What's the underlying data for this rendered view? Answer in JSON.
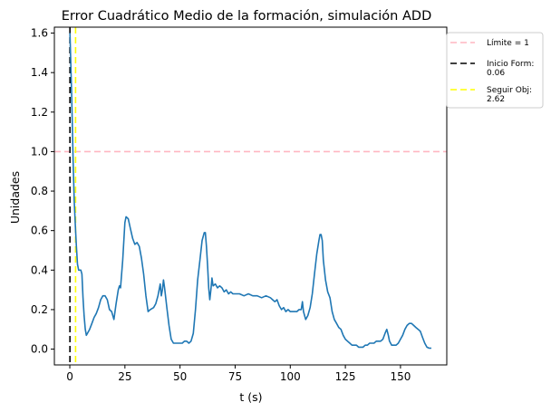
{
  "chart_data": {
    "type": "line",
    "title": "Error Cuadrático Medio de la formación, simulación ADD",
    "xlabel": "t (s)",
    "ylabel": "Unidades",
    "xlim": [
      -7,
      171
    ],
    "ylim": [
      -0.08,
      1.63
    ],
    "x_ticks": [
      0,
      25,
      50,
      75,
      100,
      125,
      150
    ],
    "y_ticks": [
      0.0,
      0.2,
      0.4,
      0.6,
      0.8,
      1.0,
      1.2,
      1.4,
      1.6
    ],
    "x_tick_labels": [
      "0",
      "25",
      "50",
      "75",
      "100",
      "125",
      "150"
    ],
    "y_tick_labels": [
      "0.0",
      "0.2",
      "0.4",
      "0.6",
      "0.8",
      "1.0",
      "1.2",
      "1.4",
      "1.6"
    ],
    "grid": false,
    "legend_position": "outside-top-right",
    "series": [
      {
        "color": "#1f77b4",
        "points": [
          [
            0.06,
            1.6
          ],
          [
            0.8,
            1.3
          ],
          [
            1.5,
            0.95
          ],
          [
            2.0,
            0.75
          ],
          [
            2.6,
            0.6
          ],
          [
            3.0,
            0.52
          ],
          [
            3.5,
            0.43
          ],
          [
            4.0,
            0.4
          ],
          [
            5.0,
            0.4
          ],
          [
            5.5,
            0.38
          ],
          [
            6.0,
            0.26
          ],
          [
            6.5,
            0.17
          ],
          [
            7.0,
            0.1
          ],
          [
            7.5,
            0.07
          ],
          [
            8.0,
            0.08
          ],
          [
            9.0,
            0.1
          ],
          [
            10.0,
            0.13
          ],
          [
            11.0,
            0.16
          ],
          [
            12.0,
            0.18
          ],
          [
            13.0,
            0.21
          ],
          [
            14.0,
            0.25
          ],
          [
            15.0,
            0.27
          ],
          [
            16.0,
            0.27
          ],
          [
            17.0,
            0.25
          ],
          [
            18.0,
            0.2
          ],
          [
            19.0,
            0.19
          ],
          [
            20.0,
            0.15
          ],
          [
            21.0,
            0.23
          ],
          [
            22.0,
            0.3
          ],
          [
            22.5,
            0.32
          ],
          [
            23.0,
            0.31
          ],
          [
            24.0,
            0.45
          ],
          [
            25.0,
            0.64
          ],
          [
            25.5,
            0.67
          ],
          [
            26.5,
            0.66
          ],
          [
            27.5,
            0.61
          ],
          [
            28.5,
            0.56
          ],
          [
            29.5,
            0.53
          ],
          [
            30.5,
            0.54
          ],
          [
            31.5,
            0.52
          ],
          [
            32.5,
            0.46
          ],
          [
            33.5,
            0.38
          ],
          [
            34.5,
            0.27
          ],
          [
            35.5,
            0.19
          ],
          [
            36.5,
            0.2
          ],
          [
            38.0,
            0.21
          ],
          [
            39.0,
            0.23
          ],
          [
            40.0,
            0.27
          ],
          [
            41.0,
            0.33
          ],
          [
            41.5,
            0.27
          ],
          [
            42.0,
            0.3
          ],
          [
            42.5,
            0.35
          ],
          [
            43.0,
            0.31
          ],
          [
            44.0,
            0.21
          ],
          [
            45.0,
            0.12
          ],
          [
            46.0,
            0.05
          ],
          [
            47.0,
            0.03
          ],
          [
            48.0,
            0.03
          ],
          [
            49.0,
            0.03
          ],
          [
            50.0,
            0.03
          ],
          [
            51.0,
            0.03
          ],
          [
            52.0,
            0.04
          ],
          [
            53.0,
            0.04
          ],
          [
            54.0,
            0.03
          ],
          [
            55.0,
            0.04
          ],
          [
            56.0,
            0.08
          ],
          [
            57.0,
            0.2
          ],
          [
            58.0,
            0.35
          ],
          [
            59.0,
            0.45
          ],
          [
            60.0,
            0.55
          ],
          [
            61.0,
            0.59
          ],
          [
            61.5,
            0.59
          ],
          [
            62.0,
            0.52
          ],
          [
            62.5,
            0.42
          ],
          [
            63.0,
            0.31
          ],
          [
            63.5,
            0.25
          ],
          [
            64.0,
            0.3
          ],
          [
            64.5,
            0.36
          ],
          [
            65.0,
            0.32
          ],
          [
            66.0,
            0.33
          ],
          [
            67.0,
            0.31
          ],
          [
            68.0,
            0.32
          ],
          [
            69.0,
            0.31
          ],
          [
            70.0,
            0.29
          ],
          [
            71.0,
            0.3
          ],
          [
            72.0,
            0.28
          ],
          [
            73.0,
            0.29
          ],
          [
            74.0,
            0.28
          ],
          [
            75.0,
            0.28
          ],
          [
            77.0,
            0.28
          ],
          [
            79.0,
            0.27
          ],
          [
            81.0,
            0.28
          ],
          [
            83.0,
            0.27
          ],
          [
            85.0,
            0.27
          ],
          [
            87.0,
            0.26
          ],
          [
            89.0,
            0.27
          ],
          [
            91.0,
            0.26
          ],
          [
            92.0,
            0.25
          ],
          [
            93.0,
            0.24
          ],
          [
            94.0,
            0.25
          ],
          [
            95.0,
            0.22
          ],
          [
            96.0,
            0.2
          ],
          [
            97.0,
            0.21
          ],
          [
            98.0,
            0.19
          ],
          [
            99.0,
            0.2
          ],
          [
            100.0,
            0.19
          ],
          [
            101.0,
            0.19
          ],
          [
            102.0,
            0.19
          ],
          [
            103.0,
            0.19
          ],
          [
            104.0,
            0.2
          ],
          [
            105.0,
            0.2
          ],
          [
            105.5,
            0.24
          ],
          [
            106.0,
            0.19
          ],
          [
            107.0,
            0.15
          ],
          [
            108.0,
            0.17
          ],
          [
            109.0,
            0.21
          ],
          [
            110.0,
            0.28
          ],
          [
            111.0,
            0.38
          ],
          [
            112.0,
            0.48
          ],
          [
            113.0,
            0.55
          ],
          [
            113.5,
            0.58
          ],
          [
            114.0,
            0.58
          ],
          [
            114.5,
            0.55
          ],
          [
            115.0,
            0.45
          ],
          [
            116.0,
            0.35
          ],
          [
            117.0,
            0.29
          ],
          [
            118.0,
            0.26
          ],
          [
            119.0,
            0.19
          ],
          [
            120.0,
            0.15
          ],
          [
            121.0,
            0.13
          ],
          [
            122.0,
            0.11
          ],
          [
            123.0,
            0.1
          ],
          [
            124.0,
            0.07
          ],
          [
            125.0,
            0.05
          ],
          [
            126.0,
            0.04
          ],
          [
            127.0,
            0.03
          ],
          [
            128.0,
            0.02
          ],
          [
            129.0,
            0.02
          ],
          [
            130.0,
            0.02
          ],
          [
            131.0,
            0.01
          ],
          [
            132.0,
            0.01
          ],
          [
            133.0,
            0.01
          ],
          [
            134.0,
            0.02
          ],
          [
            135.0,
            0.02
          ],
          [
            136.0,
            0.03
          ],
          [
            137.0,
            0.03
          ],
          [
            138.0,
            0.03
          ],
          [
            139.0,
            0.04
          ],
          [
            140.0,
            0.04
          ],
          [
            141.0,
            0.04
          ],
          [
            142.0,
            0.05
          ],
          [
            143.0,
            0.08
          ],
          [
            143.8,
            0.1
          ],
          [
            144.5,
            0.07
          ],
          [
            145.0,
            0.04
          ],
          [
            146.0,
            0.02
          ],
          [
            147.0,
            0.02
          ],
          [
            148.0,
            0.02
          ],
          [
            149.0,
            0.03
          ],
          [
            150.0,
            0.05
          ],
          [
            151.0,
            0.07
          ],
          [
            152.0,
            0.1
          ],
          [
            153.0,
            0.12
          ],
          [
            154.0,
            0.13
          ],
          [
            155.0,
            0.13
          ],
          [
            156.0,
            0.12
          ],
          [
            157.0,
            0.11
          ],
          [
            158.0,
            0.1
          ],
          [
            159.0,
            0.09
          ],
          [
            160.0,
            0.06
          ],
          [
            161.0,
            0.03
          ],
          [
            162.0,
            0.01
          ],
          [
            163.0,
            0.005
          ],
          [
            164.0,
            0.005
          ]
        ]
      }
    ],
    "reference_lines": [
      {
        "orientation": "horizontal",
        "value": 1.0,
        "color": "#ffb6c1",
        "dash": "7,4",
        "label": "Límite = 1"
      },
      {
        "orientation": "vertical",
        "value": 0.06,
        "color": "#000000",
        "dash": "7,4",
        "label": "Inicio Form:\n0.06"
      },
      {
        "orientation": "vertical",
        "value": 2.62,
        "color": "#ffff00",
        "dash": "7,4",
        "label": "Seguir Obj:\n2.62"
      }
    ]
  }
}
